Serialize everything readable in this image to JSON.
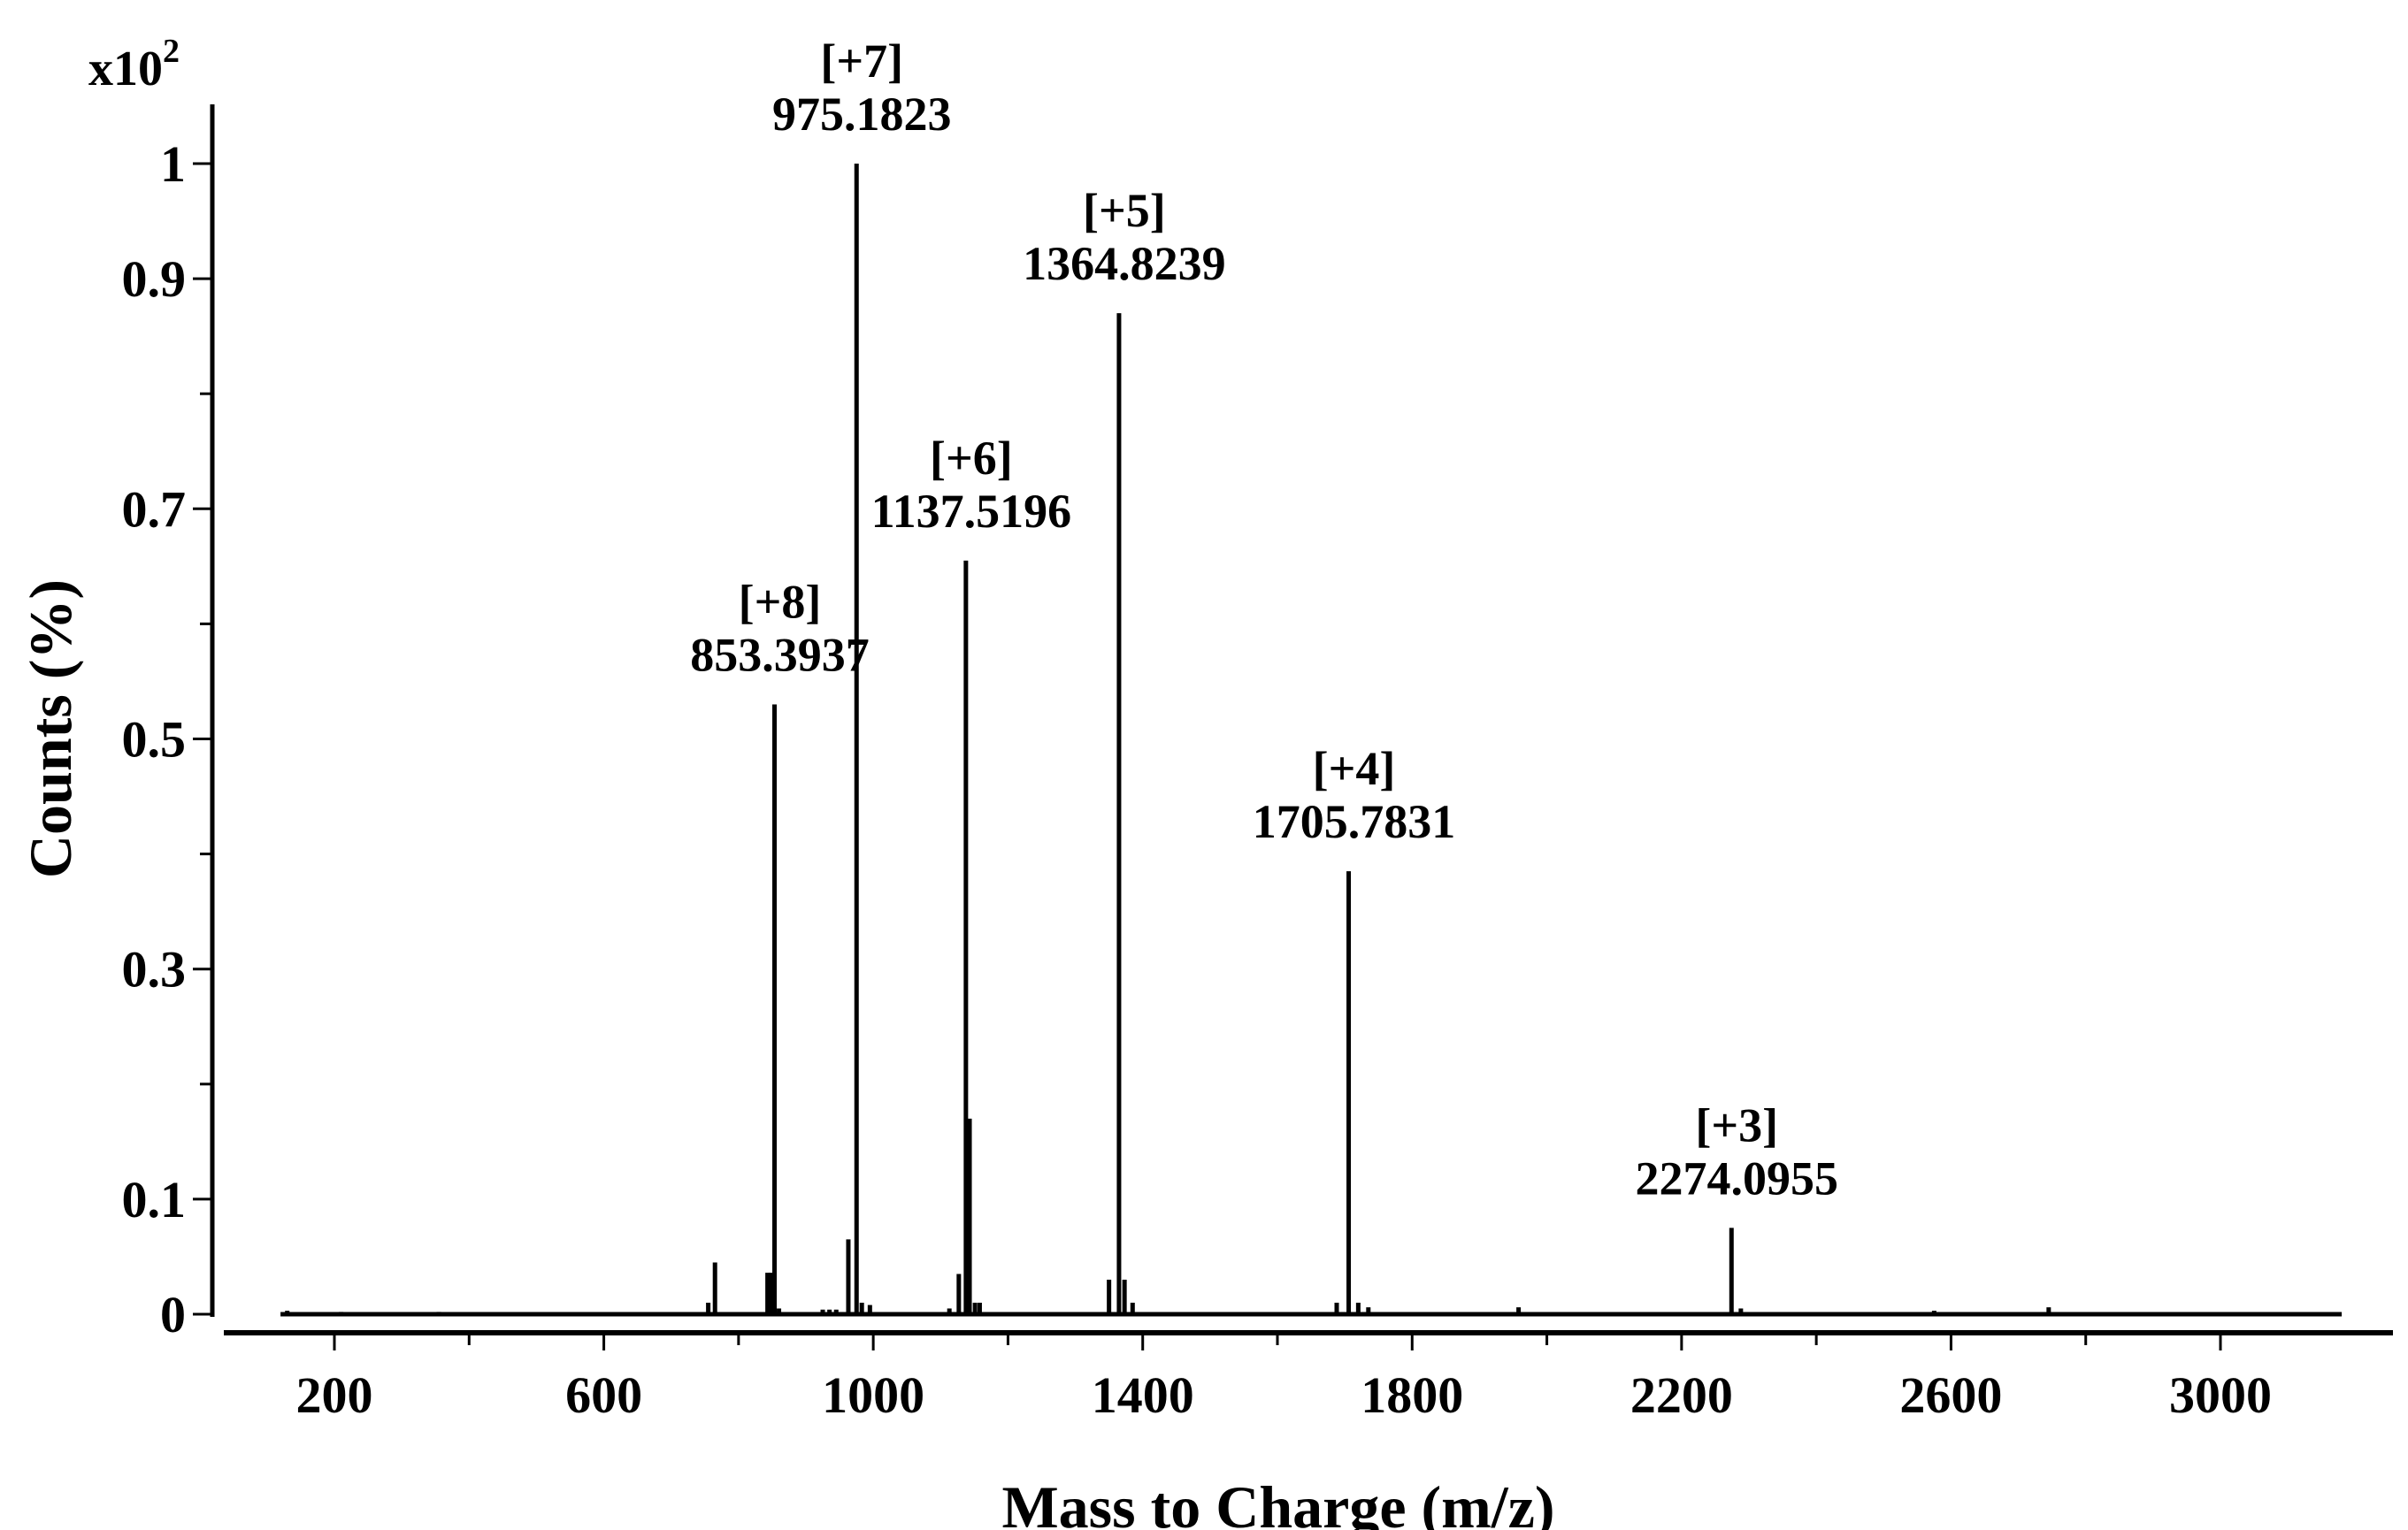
{
  "chart_data": {
    "type": "line",
    "subtype": "mass-spectrum",
    "title": "",
    "xlabel": "Mass to Charge (m/z)",
    "ylabel": "Counts (%)",
    "y_multiplier": {
      "base": "x10",
      "exponent": "2"
    },
    "xlim": [
      50,
      3300
    ],
    "ylim": [
      0,
      1.0
    ],
    "x_ticks": [
      200,
      400,
      600,
      800,
      1000,
      1200,
      1400,
      1600,
      1800,
      2000,
      2200,
      2400,
      2600,
      2800,
      3000
    ],
    "x_tick_labels": [
      "200",
      "600",
      "1000",
      "1400",
      "1800",
      "2200",
      "2600",
      "3000"
    ],
    "x_tick_label_values": [
      200,
      600,
      1000,
      1400,
      1800,
      2200,
      2600,
      3000
    ],
    "y_ticks": [
      0,
      0.1,
      0.2,
      0.3,
      0.4,
      0.5,
      0.6,
      0.7,
      0.8,
      0.9,
      1.0
    ],
    "y_tick_labels": [
      "0",
      "0.1",
      "0.3",
      "0.5",
      "0.7",
      "0.9",
      "1"
    ],
    "y_tick_label_values": [
      0,
      0.1,
      0.3,
      0.5,
      0.7,
      0.9,
      1.0
    ],
    "baseline_range": [
      120,
      3180
    ],
    "grid": false,
    "legend": "none",
    "color": "#000000",
    "labeled_peaks": [
      {
        "charge": "[+8]",
        "mz": "853.3937",
        "x": 853.39,
        "y": 0.53
      },
      {
        "charge": "[+7]",
        "mz": "975.1823",
        "x": 975.18,
        "y": 1.0
      },
      {
        "charge": "[+6]",
        "mz": "1137.5196",
        "x": 1137.52,
        "y": 0.655
      },
      {
        "charge": "[+5]",
        "mz": "1364.8239",
        "x": 1364.82,
        "y": 0.87
      },
      {
        "charge": "[+4]",
        "mz": "1705.7831",
        "x": 1705.78,
        "y": 0.385
      },
      {
        "charge": "[+3]",
        "mz": "2274.0955",
        "x": 2274.1,
        "y": 0.075
      }
    ],
    "minor_peaks": [
      {
        "x": 130,
        "y": 0.003
      },
      {
        "x": 210,
        "y": 0.002
      },
      {
        "x": 355,
        "y": 0.002
      },
      {
        "x": 755,
        "y": 0.01
      },
      {
        "x": 765,
        "y": 0.045
      },
      {
        "x": 843,
        "y": 0.036
      },
      {
        "x": 848,
        "y": 0.036
      },
      {
        "x": 860,
        "y": 0.005
      },
      {
        "x": 925,
        "y": 0.004
      },
      {
        "x": 935,
        "y": 0.004
      },
      {
        "x": 945,
        "y": 0.004
      },
      {
        "x": 963,
        "y": 0.065
      },
      {
        "x": 983,
        "y": 0.01
      },
      {
        "x": 995,
        "y": 0.008
      },
      {
        "x": 1113,
        "y": 0.005
      },
      {
        "x": 1127,
        "y": 0.035
      },
      {
        "x": 1143,
        "y": 0.17
      },
      {
        "x": 1151,
        "y": 0.01
      },
      {
        "x": 1158,
        "y": 0.01
      },
      {
        "x": 1350,
        "y": 0.03
      },
      {
        "x": 1373,
        "y": 0.03
      },
      {
        "x": 1385,
        "y": 0.01
      },
      {
        "x": 1688,
        "y": 0.01
      },
      {
        "x": 1720,
        "y": 0.01
      },
      {
        "x": 1735,
        "y": 0.006
      },
      {
        "x": 1958,
        "y": 0.006
      },
      {
        "x": 2288,
        "y": 0.005
      },
      {
        "x": 2575,
        "y": 0.003
      },
      {
        "x": 2745,
        "y": 0.006
      }
    ]
  }
}
